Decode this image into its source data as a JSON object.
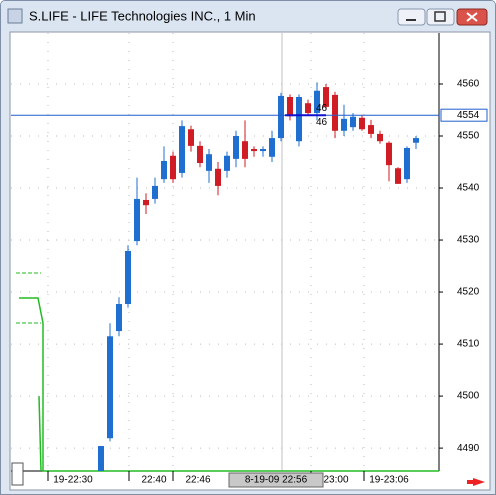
{
  "window_title": "S.LIFE - LIFE Technologies INC., 1 Min",
  "chart_data": {
    "type": "candlestick",
    "ylim": [
      4485.6,
      4569.8
    ],
    "yticks": [
      4490,
      4500,
      4510,
      4520,
      4530,
      4540,
      4550,
      4560
    ],
    "grid": true,
    "up_color": "#1f6fd1",
    "down_color": "#d01c24",
    "open": [
      4485.6,
      4491.9,
      4512.5,
      4517.7,
      4529.8,
      4537.7,
      4537.9,
      4541.7,
      4546.2,
      4542.9,
      4551.3,
      4548.1,
      4543.3,
      4543.7,
      4543.3,
      4545.6,
      4549.0,
      4547.5,
      4547.1,
      4546.0,
      4549.6,
      4557.5,
      4549.0,
      4556.3,
      4554.4,
      4559.4,
      4557.9,
      4551.0,
      4551.7,
      4553.5,
      4552.1,
      4550.4,
      4548.7,
      4543.8,
      4541.7,
      4548.7
    ],
    "high": [
      4490.4,
      4514.0,
      4519.0,
      4529.0,
      4542.0,
      4539.0,
      4542.0,
      4548.0,
      4547.0,
      4553.0,
      4552.0,
      4549.0,
      4547.5,
      4545.0,
      4547.0,
      4551.0,
      4553.0,
      4548.0,
      4548.0,
      4551.0,
      4558.3,
      4558.0,
      4558.0,
      4557.0,
      4560.3,
      4560.0,
      4558.5,
      4556.0,
      4554.4,
      4554.0,
      4553.1,
      4551.0,
      4549.0,
      4544.0,
      4548.0,
      4550.0
    ],
    "low": [
      4485.6,
      4491.3,
      4511.5,
      4517.0,
      4529.0,
      4535.0,
      4537.0,
      4541.0,
      4541.0,
      4542.0,
      4547.0,
      4544.0,
      4541.0,
      4538.6,
      4542.0,
      4544.0,
      4544.0,
      4546.0,
      4546.0,
      4545.0,
      4549.0,
      4553.0,
      4548.0,
      4554.0,
      4553.0,
      4555.0,
      4549.6,
      4550.0,
      4551.0,
      4551.0,
      4549.6,
      4548.5,
      4541.3,
      4540.8,
      4541.0,
      4547.5
    ],
    "close": [
      4490.4,
      4511.5,
      4517.7,
      4527.9,
      4537.9,
      4536.7,
      4540.4,
      4545.2,
      4541.7,
      4551.9,
      4548.1,
      4544.8,
      4546.5,
      4540.4,
      4546.2,
      4550.0,
      4545.6,
      4547.1,
      4547.5,
      4549.6,
      4557.7,
      4553.8,
      4557.5,
      4554.4,
      4558.7,
      4555.6,
      4551.0,
      4553.3,
      4553.7,
      4551.3,
      4550.4,
      4549.0,
      4544.4,
      4540.8,
      4547.7,
      4549.6
    ],
    "last_price": 4554,
    "annotations": [
      "46",
      "46"
    ],
    "xtick_labels": [
      "19-22:30",
      "22:40",
      "22:46",
      "23:00",
      "19-23:06"
    ],
    "crosshair_label": "8-19-09 22:56"
  }
}
